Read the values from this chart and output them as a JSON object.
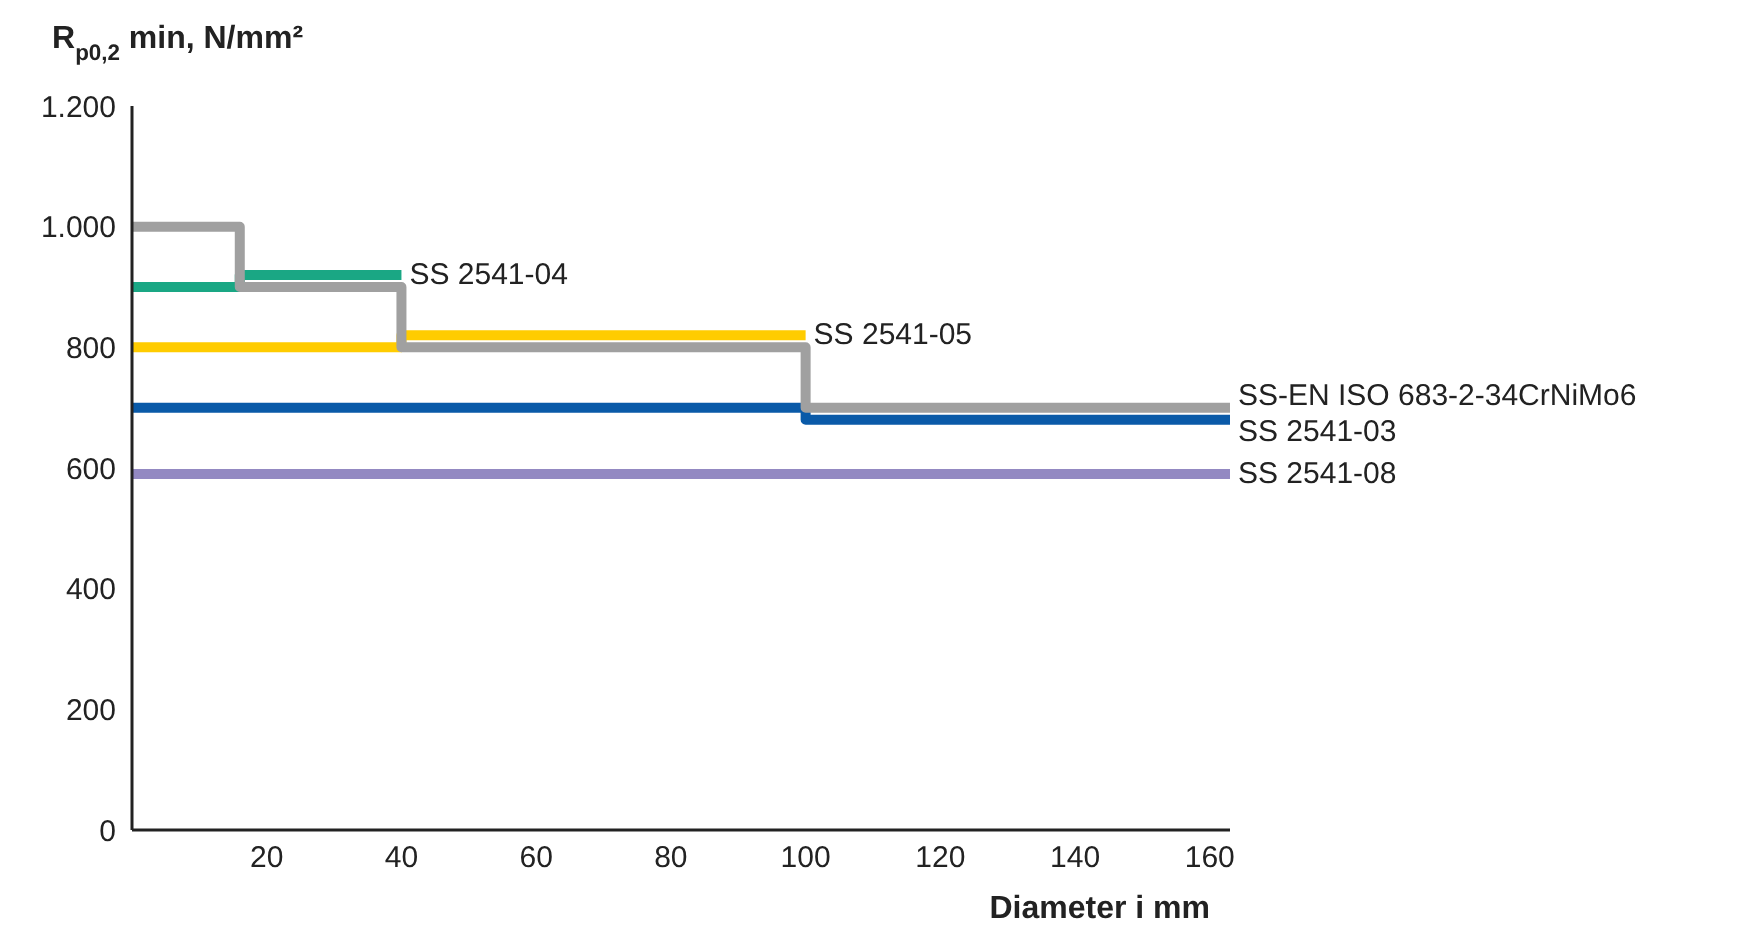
{
  "chart_data": {
    "type": "step",
    "ylabel": "R$_{p0,2}$ min, N/mm²",
    "xlabel": "Diameter i mm",
    "xlim": [
      0,
      163
    ],
    "xticks": [
      20,
      40,
      60,
      80,
      100,
      120,
      140,
      160
    ],
    "ylim": [
      0,
      1200
    ],
    "yticks": [
      0,
      200,
      400,
      600,
      800,
      {
        "value": 1000,
        "label": "1.000"
      },
      {
        "value": 1200,
        "label": "1.200"
      }
    ],
    "legend": false,
    "grid": false,
    "series": [
      {
        "name": "SS 2541-08",
        "color": "#9389c2",
        "x": [
          0,
          163
        ],
        "values": [
          590,
          590
        ]
      },
      {
        "name": "SS 2541-03",
        "color": "#0a5aa8",
        "x": [
          0,
          100,
          163
        ],
        "values": [
          700,
          680,
          680
        ]
      },
      {
        "name": "SS 2541-05",
        "color": "#ffcc00",
        "x": [
          0,
          40,
          100
        ],
        "values": [
          800,
          820,
          820
        ]
      },
      {
        "name": "SS 2541-04",
        "color": "#1aa784",
        "x": [
          0,
          16,
          40
        ],
        "values": [
          900,
          920,
          920
        ]
      },
      {
        "name": "SS-EN ISO 683-2-34CrNiMo6",
        "color": "#a0a0a0",
        "x": [
          0,
          16,
          40,
          100,
          163
        ],
        "values": [
          1000,
          900,
          800,
          700,
          700
        ]
      }
    ]
  }
}
